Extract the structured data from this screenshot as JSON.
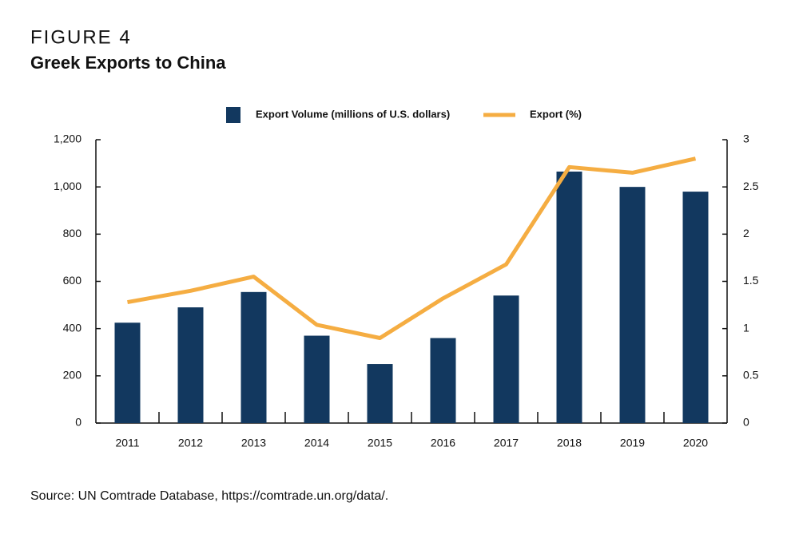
{
  "chart_data": {
    "type": "bar",
    "label": "FIGURE 4",
    "title": "Greek Exports to China",
    "source": "Source: UN Comtrade Database, https://comtrade.un.org/data/.",
    "categories": [
      "2011",
      "2012",
      "2013",
      "2014",
      "2015",
      "2016",
      "2017",
      "2018",
      "2019",
      "2020"
    ],
    "series": [
      {
        "name": "Export Volume (millions of U.S. dollars)",
        "type": "bar",
        "color": "#12385f",
        "values": [
          425,
          490,
          555,
          370,
          250,
          360,
          540,
          1065,
          1000,
          980
        ]
      },
      {
        "name": "Export (%)",
        "type": "line",
        "axis": "y2",
        "color": "#f5ad42",
        "values": [
          1.28,
          1.4,
          1.55,
          1.04,
          0.9,
          1.32,
          1.68,
          2.71,
          2.65,
          2.8
        ]
      }
    ],
    "ylim": [
      0,
      1200
    ],
    "yticks": [
      0,
      200,
      400,
      600,
      800,
      {
        "value": 1000,
        "label": "1,000"
      },
      {
        "value": 1200,
        "label": "1,200"
      }
    ],
    "y2lim": [
      0,
      3
    ],
    "y2ticks": [
      0,
      0.5,
      1,
      1.5,
      2,
      2.5,
      3
    ],
    "grid": false,
    "legend": "top"
  }
}
